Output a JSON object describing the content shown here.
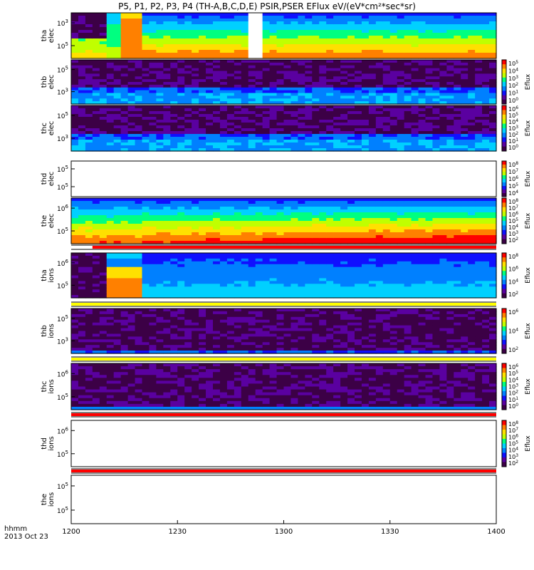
{
  "title": "P5, P1, P2, P3, P4 (TH-A,B,C,D,E) PSIR,PSER EFlux eV/(eV*cm²*sec*sr)",
  "footer": {
    "axis_name": "hhmm",
    "date": "2013 Oct 23"
  },
  "colors": {
    "colormap": [
      "#3c0046",
      "#5a00a0",
      "#1010ff",
      "#0080ff",
      "#00d0ff",
      "#00ff80",
      "#c0ff00",
      "#ffe000",
      "#ff8000",
      "#ff0000"
    ],
    "flag_yellow": "#ffff00",
    "flag_red": "#ff0000",
    "background": "#ffffff"
  },
  "chart_data": {
    "type": "heatmap",
    "x_axis": {
      "ticks": [
        "1200",
        "1230",
        "1300",
        "1330",
        "1400"
      ],
      "range": [
        "12:00",
        "14:00"
      ]
    },
    "panels": [
      {
        "id": "tha-elec",
        "label": [
          "tha",
          "elec"
        ],
        "ytick_exps": [
          "3",
          "5"
        ],
        "colorbar": null,
        "pattern": "tha_elec",
        "fill_gap": [
          "12:50",
          "12:54"
        ]
      },
      {
        "id": "thb-elec",
        "label": [
          "thb",
          "elec"
        ],
        "ytick_exps": [
          "5",
          "3"
        ],
        "colorbar": {
          "exps": [
            "5",
            "4",
            "3",
            "2",
            "1",
            "0"
          ],
          "label": "Eflux"
        },
        "pattern": "noise_band_low"
      },
      {
        "id": "thc-elec",
        "label": [
          "thc",
          "elec"
        ],
        "ytick_exps": [
          "5",
          "3"
        ],
        "colorbar": {
          "exps": [
            "6",
            "5",
            "4",
            "3",
            "2",
            "1",
            "0"
          ],
          "label": "Eflux"
        },
        "pattern": "noise_band_low"
      },
      {
        "id": "thd-elec",
        "label": [
          "thd",
          "elec"
        ],
        "ytick_exps": [
          "5",
          "5"
        ],
        "colorbar": {
          "exps": [
            "8",
            "7",
            "6",
            "5",
            "4"
          ],
          "label": "Eflux"
        },
        "pattern": "empty"
      },
      {
        "id": "the-elec",
        "label": [
          "the",
          "elec"
        ],
        "ytick_exps": [
          "6",
          "5"
        ],
        "colorbar": {
          "exps": [
            "8",
            "7",
            "6",
            "5",
            "4",
            "3",
            "2"
          ],
          "label": "Eflux"
        },
        "pattern": "the_elec"
      },
      {
        "id": "tha-ions",
        "label": [
          "tha",
          "ions"
        ],
        "ytick_exps": [
          "6",
          "5"
        ],
        "colorbar": {
          "exps": [
            "8",
            "6",
            "4",
            "2"
          ],
          "label": "Eflux"
        },
        "pattern": "tha_ions"
      },
      {
        "id": "thb-ions",
        "label": [
          "thb",
          "ions"
        ],
        "ytick_exps": [
          "5",
          "3"
        ],
        "colorbar": {
          "exps": [
            "6",
            "4",
            "2"
          ],
          "label": "Eflux"
        },
        "pattern": "noise_dark"
      },
      {
        "id": "thc-ions",
        "label": [
          "thc",
          "ions"
        ],
        "ytick_exps": [
          "6",
          "5"
        ],
        "colorbar": {
          "exps": [
            "6",
            "5",
            "4",
            "3",
            "2",
            "1",
            "0"
          ],
          "label": "Eflux"
        },
        "pattern": "noise_dark_band"
      },
      {
        "id": "thd-ions",
        "label": [
          "thd",
          "ions"
        ],
        "ytick_exps": [
          "6",
          "5"
        ],
        "colorbar": {
          "exps": [
            "8",
            "7",
            "6",
            "5",
            "4",
            "3",
            "2"
          ],
          "label": "Eflux"
        },
        "pattern": "empty"
      },
      {
        "id": "the-ions",
        "label": [
          "the",
          "ions"
        ],
        "ytick_exps": [
          "5",
          "5"
        ],
        "colorbar": null,
        "pattern": "empty"
      }
    ],
    "flag_bars": [
      {
        "after_panel": "the-elec",
        "segments": [
          {
            "from": "12:00",
            "to": "12:06",
            "color": "flag_white"
          },
          {
            "from": "12:06",
            "to": "14:00",
            "color": "flag_red"
          }
        ]
      },
      {
        "after_panel": "tha-ions",
        "segments": [
          {
            "from": "12:00",
            "to": "14:00",
            "color": "flag_yellow"
          }
        ]
      },
      {
        "after_panel": "thb-ions",
        "segments": [
          {
            "from": "12:00",
            "to": "14:00",
            "color": "flag_yellow"
          }
        ]
      },
      {
        "after_panel": "thc-ions",
        "segments": [
          {
            "from": "12:00",
            "to": "14:00",
            "color": "flag_red"
          }
        ]
      },
      {
        "after_panel": "thd-ions",
        "segments": [
          {
            "from": "12:00",
            "to": "14:00",
            "color": "flag_red"
          }
        ]
      }
    ]
  }
}
